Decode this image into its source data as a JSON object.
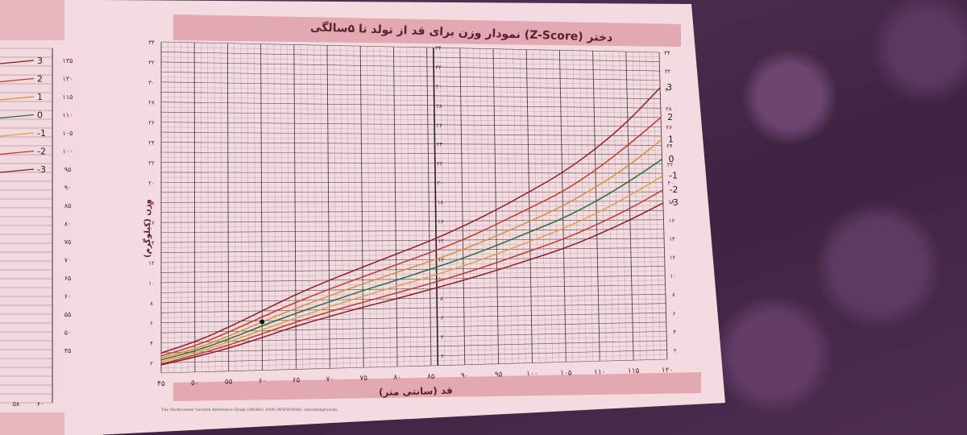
{
  "title": "نمودار وزن برای قد از تولد تا ۵سالگی (Z-Score) دختر",
  "x_axis_label": "قد (سانتی متر)",
  "y_axis_label": "وزن (کیلوگرم)",
  "footer": "The Multicenter Growth Reference Study (MGRS) 2006 (WWW.WHO .int/childgrowth)",
  "x_ticks": [
    "۴۵",
    "۵۰",
    "۵۵",
    "۶۰",
    "۶۵",
    "۷۰",
    "۷۵",
    "۸۰",
    "۸۵",
    "۹۰",
    "۹۵",
    "۱۰۰",
    "۱۰۵",
    "۱۱۰",
    "۱۱۵",
    "۱۲۰"
  ],
  "y_ticks": [
    "۲",
    "۴",
    "۶",
    "۸",
    "۱۰",
    "۱۲",
    "۱۴",
    "۱۶",
    "۱۸",
    "۲۰",
    "۲۲",
    "۲۴",
    "۲۶",
    "۲۸",
    "۳۰",
    "۳۲",
    "۳۴"
  ],
  "left_page": {
    "z_labels": [
      "3",
      "2",
      "1",
      "0",
      "-1",
      "-2",
      "-3"
    ],
    "y_ticks": [
      "۱۳۵",
      "۱۳۰",
      "۱۱۵",
      "۱۱۰",
      "۱۰۵",
      "۱۰۰",
      "۹۵",
      "۹۰",
      "۸۵",
      "۸۰",
      "۷۵",
      "۷۰",
      "۶۵",
      "۶۰",
      "۵۵",
      "۵۰",
      "۴۵"
    ],
    "x_ticks": [
      "۵۸",
      "۶۰"
    ]
  },
  "colors": {
    "z3": "#8a1c2b",
    "z2": "#c0392b",
    "z1": "#d4913a",
    "z0": "#2e6b3a",
    "zm1": "#d9a24a",
    "zm2": "#c0392b",
    "zm3": "#8a1c2b",
    "grid": "#333333",
    "title_band": "#e3a9b2"
  },
  "chart_data": {
    "type": "line",
    "title": "نمودار وزن برای قد از تولد تا ۵سالگی (Z-Score) دختر",
    "xlabel": "قد (سانتی متر)",
    "ylabel": "وزن (کیلوگرم)",
    "xlim": [
      45,
      120
    ],
    "ylim": [
      1,
      34
    ],
    "x": [
      45,
      50,
      55,
      60,
      65,
      70,
      75,
      80,
      85,
      90,
      95,
      100,
      105,
      110,
      115,
      120
    ],
    "series": [
      {
        "name": "3",
        "values": [
          3.0,
          4.0,
          5.4,
          7.0,
          8.6,
          10.0,
          11.3,
          12.6,
          13.9,
          15.4,
          17.1,
          19.0,
          21.0,
          23.5,
          26.5,
          30.2
        ]
      },
      {
        "name": "2",
        "values": [
          2.7,
          3.6,
          4.9,
          6.4,
          7.8,
          9.1,
          10.3,
          11.5,
          12.7,
          14.0,
          15.6,
          17.3,
          19.0,
          21.3,
          24.0,
          27.0
        ]
      },
      {
        "name": "1",
        "values": [
          2.5,
          3.3,
          4.5,
          5.9,
          7.2,
          8.4,
          9.6,
          10.7,
          11.8,
          13.0,
          14.4,
          15.9,
          17.5,
          19.5,
          21.8,
          24.6
        ]
      },
      {
        "name": "0",
        "values": [
          2.3,
          3.1,
          4.2,
          5.5,
          6.7,
          7.8,
          8.9,
          9.9,
          11.0,
          12.1,
          13.4,
          14.8,
          16.2,
          18.0,
          20.1,
          22.5
        ]
      },
      {
        "name": "-1",
        "values": [
          2.1,
          2.9,
          3.9,
          5.1,
          6.2,
          7.3,
          8.3,
          9.3,
          10.2,
          11.3,
          12.5,
          13.8,
          15.1,
          16.7,
          18.6,
          20.7
        ]
      },
      {
        "name": "-2",
        "values": [
          1.9,
          2.7,
          3.6,
          4.7,
          5.8,
          6.8,
          7.7,
          8.6,
          9.5,
          10.5,
          11.6,
          12.8,
          14.0,
          15.5,
          17.2,
          19.2
        ]
      },
      {
        "name": "-3",
        "values": [
          1.8,
          2.5,
          3.3,
          4.3,
          5.4,
          6.3,
          7.2,
          8.0,
          8.9,
          9.8,
          10.8,
          11.9,
          13.0,
          14.4,
          16.0,
          17.8
        ]
      }
    ],
    "annotations": [
      {
        "x": 60,
        "y": 5.9,
        "marker": "dot"
      }
    ],
    "grid": true
  }
}
